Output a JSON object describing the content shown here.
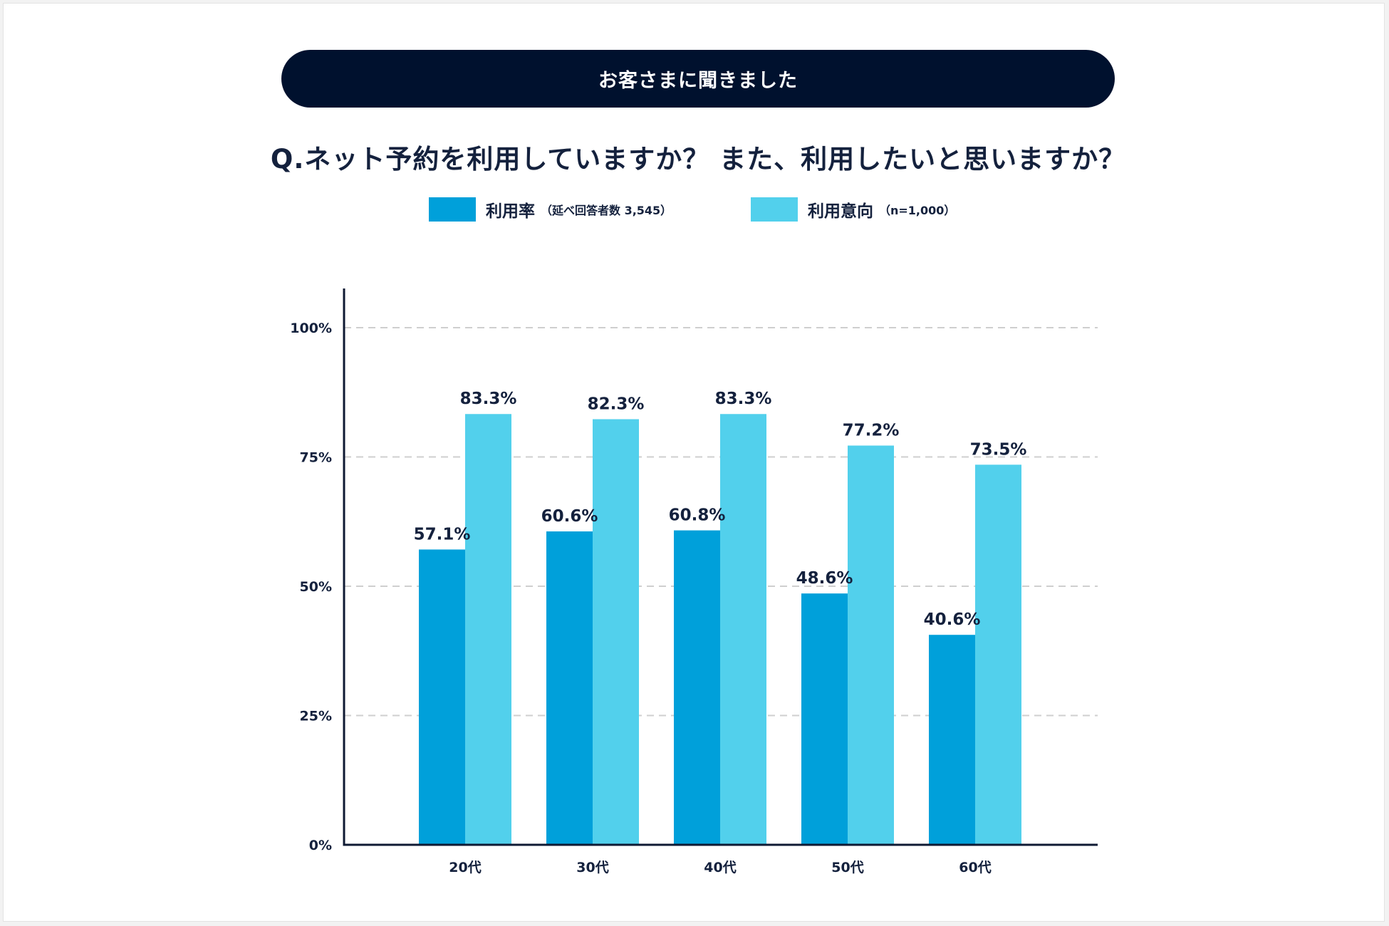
{
  "header": {
    "banner": "お客さまに聞きました",
    "question": "Q.ネット予約を利用していますか？ また、利用したいと思いますか？"
  },
  "legend": [
    {
      "label": "利用率",
      "note": "（延べ回答者数 3,545）",
      "color": "#00a0da"
    },
    {
      "label": "利用意向",
      "note": "（n=1,000）",
      "color": "#52d0ec"
    }
  ],
  "chart_data": {
    "type": "bar",
    "title": "Q.ネット予約を利用していますか？ また、利用したいと思いますか？",
    "categories": [
      "20代",
      "30代",
      "40代",
      "50代",
      "60代"
    ],
    "series": [
      {
        "name": "利用率",
        "values": [
          57.1,
          60.6,
          60.8,
          48.6,
          40.6
        ],
        "color": "#00a0da"
      },
      {
        "name": "利用意向",
        "values": [
          83.3,
          82.3,
          83.3,
          77.2,
          73.5
        ],
        "color": "#52d0ec"
      }
    ],
    "value_labels": [
      [
        "57.1%",
        "60.6%",
        "60.8%",
        "48.6%",
        "40.6%"
      ],
      [
        "83.3%",
        "82.3%",
        "83.3%",
        "77.2%",
        "73.5%"
      ]
    ],
    "y_ticks": [
      0,
      25,
      50,
      75,
      100
    ],
    "y_tick_labels": [
      "0%",
      "25%",
      "50%",
      "75%",
      "100%"
    ],
    "ylim": [
      0,
      100
    ],
    "xlabel": "",
    "ylabel": "",
    "grid": true,
    "legend_position": "top"
  }
}
